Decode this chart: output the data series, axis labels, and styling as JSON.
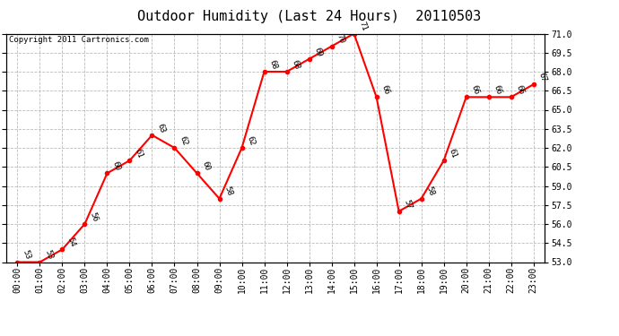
{
  "title": "Outdoor Humidity (Last 24 Hours)  20110503",
  "copyright": "Copyright 2011 Cartronics.com",
  "hours": [
    "00:00",
    "01:00",
    "02:00",
    "03:00",
    "04:00",
    "05:00",
    "06:00",
    "07:00",
    "08:00",
    "09:00",
    "10:00",
    "11:00",
    "12:00",
    "13:00",
    "14:00",
    "15:00",
    "16:00",
    "17:00",
    "18:00",
    "19:00",
    "20:00",
    "21:00",
    "22:00",
    "23:00"
  ],
  "values": [
    53,
    53,
    54,
    56,
    60,
    61,
    63,
    62,
    60,
    58,
    62,
    68,
    68,
    69,
    70,
    71,
    66,
    57,
    58,
    61,
    66,
    66,
    66,
    67
  ],
  "ylim": [
    53.0,
    71.0
  ],
  "yticks": [
    53.0,
    54.5,
    56.0,
    57.5,
    59.0,
    60.5,
    62.0,
    63.5,
    65.0,
    66.5,
    68.0,
    69.5,
    71.0
  ],
  "line_color": "red",
  "marker_color": "red",
  "bg_color": "white",
  "plot_bg_color": "white",
  "grid_color": "#bbbbbb",
  "title_fontsize": 11,
  "label_fontsize": 6.5,
  "tick_fontsize": 7,
  "copyright_fontsize": 6.5
}
